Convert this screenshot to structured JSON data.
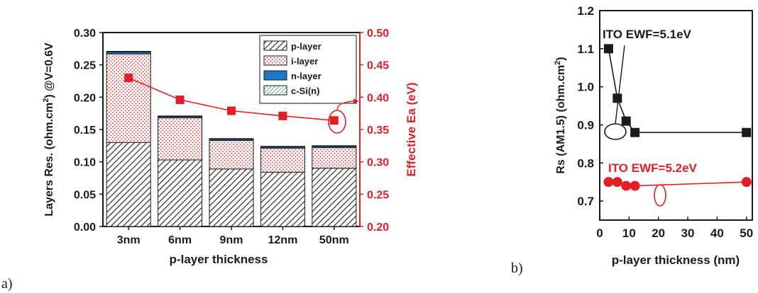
{
  "panel_labels": [
    "a)",
    "b)"
  ],
  "colors": {
    "black": "#1a1a1a",
    "red": "#e31e24",
    "blue": "#1f77c4",
    "green": "#2e9e4a"
  },
  "chart_data": [
    {
      "type": "bar",
      "stacked": true,
      "xlabel": "p-layer thickness",
      "ylabel": "Layers Res. (ohm.cm²) @V=0.6V",
      "y2label": "Effective Ea (eV)",
      "categories": [
        "3nm",
        "6nm",
        "9nm",
        "12nm",
        "50nm"
      ],
      "ylim": [
        0,
        0.3
      ],
      "yticks": [
        "0.00",
        "0.05",
        "0.10",
        "0.15",
        "0.20",
        "0.25",
        "0.30"
      ],
      "y2lim": [
        0.2,
        0.5
      ],
      "y2ticks": [
        "0.20",
        "0.25",
        "0.30",
        "0.35",
        "0.40",
        "0.45",
        "0.50"
      ],
      "legend": {
        "position": "top-right"
      },
      "series": [
        {
          "name": "p-layer",
          "pattern": "hatch",
          "values": [
            0.13,
            0.103,
            0.089,
            0.084,
            0.09
          ]
        },
        {
          "name": "i-layer",
          "pattern": "red-dots",
          "values": [
            0.137,
            0.065,
            0.044,
            0.037,
            0.032
          ]
        },
        {
          "name": "n-layer",
          "pattern": "blue",
          "values": [
            0.003,
            0.002,
            0.002,
            0.002,
            0.002
          ]
        },
        {
          "name": "c-Si(n)",
          "pattern": "green-hatch",
          "values": [
            0.001,
            0.001,
            0.001,
            0.001,
            0.001
          ]
        }
      ],
      "line_series": {
        "axis": "right",
        "values": [
          0.43,
          0.396,
          0.379,
          0.371,
          0.364
        ]
      }
    },
    {
      "type": "scatter",
      "xlabel": "p-layer thickness (nm)",
      "ylabel": "Rs (AM1.5) (ohm.cm²)",
      "xlim": [
        0,
        52
      ],
      "xticks": [
        "0",
        "10",
        "20",
        "30",
        "40",
        "50"
      ],
      "ylim": [
        0.65,
        1.2
      ],
      "yticks": [
        "0.7",
        "0.8",
        "0.9",
        "1.0",
        "1.1",
        "1.2"
      ],
      "annotations": [
        "ITO EWF=5.1eV",
        "ITO EWF=5.2eV"
      ],
      "series": [
        {
          "name": "ITO EWF=5.1eV",
          "marker": "square",
          "color": "#1a1a1a",
          "x": [
            3,
            6,
            9,
            12,
            50
          ],
          "y": [
            1.1,
            0.97,
            0.91,
            0.88,
            0.88
          ]
        },
        {
          "name": "ITO EWF=5.2eV",
          "marker": "circle",
          "color": "#e31e24",
          "x": [
            3,
            6,
            9,
            12,
            50
          ],
          "y": [
            0.75,
            0.75,
            0.74,
            0.74,
            0.75
          ]
        }
      ]
    }
  ]
}
